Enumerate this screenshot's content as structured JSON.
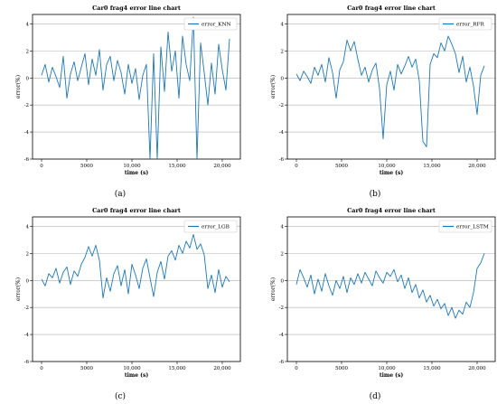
{
  "chart_data": [
    {
      "type": "line",
      "panel_label": "(a)",
      "title": "Car0 frag4 error line chart",
      "xlabel": "time (s)",
      "ylabel": "error(%)",
      "xlim": [
        -1000,
        22000
      ],
      "ylim": [
        -6,
        4.7
      ],
      "xticks": [
        0,
        5000,
        10000,
        15000,
        20000
      ],
      "xtick_labels": [
        "0",
        "5000",
        "10,000",
        "15,000",
        "20,000"
      ],
      "yticks": [
        -6,
        -4,
        -2,
        0,
        2,
        4
      ],
      "ytick_labels": [
        "-6",
        "-4",
        "-2",
        "0",
        "2",
        "4"
      ],
      "grid": "y",
      "legend_position": "top-right",
      "series": [
        {
          "name": "error_KNN",
          "color": "#1f77b4",
          "x": [
            0,
            400,
            800,
            1200,
            1600,
            2000,
            2400,
            2800,
            3200,
            3600,
            4000,
            4400,
            4800,
            5200,
            5600,
            6000,
            6400,
            6800,
            7200,
            7600,
            8000,
            8400,
            8800,
            9200,
            9600,
            10000,
            10400,
            10800,
            11200,
            11600,
            12000,
            12400,
            12800,
            13200,
            13600,
            14000,
            14400,
            14800,
            15200,
            15600,
            16000,
            16400,
            16800,
            17200,
            17600,
            18000,
            18400,
            18800,
            19200,
            19600,
            20000,
            20400,
            20800
          ],
          "y": [
            0.2,
            1.0,
            -0.3,
            0.8,
            0.1,
            -0.7,
            1.6,
            -1.5,
            0.3,
            1.2,
            -0.2,
            0.8,
            1.8,
            -0.5,
            1.4,
            0.2,
            2.1,
            -0.9,
            1.0,
            1.6,
            -0.2,
            1.3,
            0.4,
            -1.2,
            1.0,
            -0.4,
            0.7,
            -1.6,
            0.2,
            1.0,
            -6.0,
            1.8,
            -6.0,
            2.3,
            -1.0,
            3.4,
            0.5,
            2.0,
            -1.5,
            3.1,
            1.0,
            -0.2,
            4.5,
            -6.0,
            2.6,
            0.4,
            -2.0,
            1.1,
            -1.2,
            2.5,
            0.6,
            -0.9,
            2.9
          ]
        }
      ]
    },
    {
      "type": "line",
      "panel_label": "(b)",
      "title": "Car0 frag4 error line chart",
      "xlabel": "time (s)",
      "ylabel": "error(%)",
      "xlim": [
        -1000,
        22000
      ],
      "ylim": [
        -6,
        4.7
      ],
      "xticks": [
        0,
        5000,
        10000,
        15000,
        20000
      ],
      "xtick_labels": [
        "0",
        "5000",
        "10,000",
        "15,000",
        "20,000"
      ],
      "yticks": [
        -6,
        -4,
        -2,
        0,
        2,
        4
      ],
      "ytick_labels": [
        "-6",
        "-4",
        "-2",
        "0",
        "2",
        "4"
      ],
      "grid": "y",
      "legend_position": "top-right",
      "series": [
        {
          "name": "error_RFR",
          "color": "#1f77b4",
          "x": [
            0,
            400,
            800,
            1200,
            1600,
            2000,
            2400,
            2800,
            3200,
            3600,
            4000,
            4400,
            4800,
            5200,
            5600,
            6000,
            6400,
            6800,
            7200,
            7600,
            8000,
            8400,
            8800,
            9200,
            9600,
            10000,
            10400,
            10800,
            11200,
            11600,
            12000,
            12400,
            12800,
            13200,
            13600,
            14000,
            14400,
            14800,
            15200,
            15600,
            16000,
            16400,
            16800,
            17200,
            17600,
            18000,
            18400,
            18800,
            19200,
            19600,
            20000,
            20400,
            20800
          ],
          "y": [
            0.3,
            -0.2,
            0.5,
            0.1,
            -0.4,
            0.8,
            0.2,
            1.0,
            -0.3,
            1.5,
            0.4,
            -1.5,
            0.6,
            1.2,
            2.8,
            2.0,
            2.7,
            1.4,
            0.2,
            0.8,
            -0.3,
            0.6,
            1.1,
            -0.8,
            -4.5,
            -0.5,
            0.5,
            -0.9,
            1.0,
            0.3,
            0.9,
            1.6,
            0.8,
            1.4,
            -0.2,
            -4.7,
            -5.1,
            1.0,
            1.8,
            1.5,
            2.6,
            2.0,
            3.1,
            2.5,
            1.8,
            0.4,
            1.6,
            -0.3,
            0.8,
            -0.6,
            -2.7,
            0.2,
            0.9
          ]
        }
      ]
    },
    {
      "type": "line",
      "panel_label": "(c)",
      "title": "Car0 frag4 error line chart",
      "xlabel": "time (s)",
      "ylabel": "error(%)",
      "xlim": [
        -1000,
        22000
      ],
      "ylim": [
        -6,
        4.7
      ],
      "xticks": [
        0,
        5000,
        10000,
        15000,
        20000
      ],
      "xtick_labels": [
        "0",
        "5000",
        "10,000",
        "15,000",
        "20,000"
      ],
      "yticks": [
        -6,
        -4,
        -2,
        0,
        2,
        4
      ],
      "ytick_labels": [
        "-6",
        "-4",
        "-2",
        "0",
        "2",
        "4"
      ],
      "grid": "y",
      "legend_position": "top-right",
      "series": [
        {
          "name": "error_LGB",
          "color": "#1f77b4",
          "x": [
            0,
            400,
            800,
            1200,
            1600,
            2000,
            2400,
            2800,
            3200,
            3600,
            4000,
            4400,
            4800,
            5200,
            5600,
            6000,
            6400,
            6800,
            7200,
            7600,
            8000,
            8400,
            8800,
            9200,
            9600,
            10000,
            10400,
            10800,
            11200,
            11600,
            12000,
            12400,
            12800,
            13200,
            13600,
            14000,
            14400,
            14800,
            15200,
            15600,
            16000,
            16400,
            16800,
            17200,
            17600,
            18000,
            18400,
            18800,
            19200,
            19600,
            20000,
            20400,
            20800
          ],
          "y": [
            0.1,
            -0.4,
            0.5,
            0.2,
            0.9,
            -0.2,
            0.6,
            1.0,
            -0.3,
            0.7,
            0.3,
            1.2,
            1.7,
            2.5,
            1.8,
            2.6,
            1.5,
            -1.3,
            0.2,
            -0.8,
            0.5,
            1.1,
            -0.4,
            0.8,
            -1.0,
            1.2,
            0.4,
            -0.6,
            0.9,
            1.6,
            0.2,
            -1.2,
            0.6,
            1.4,
            0.1,
            1.8,
            2.2,
            1.5,
            2.6,
            2.0,
            2.9,
            2.4,
            3.4,
            2.3,
            2.7,
            1.9,
            -0.6,
            0.4,
            -0.9,
            0.8,
            -0.5,
            0.3,
            -0.1
          ]
        }
      ]
    },
    {
      "type": "line",
      "panel_label": "(d)",
      "title": "Car0 frag4 error line chart",
      "xlabel": "time (s)",
      "ylabel": "error(%)",
      "xlim": [
        -1000,
        22000
      ],
      "ylim": [
        -6,
        4.7
      ],
      "xticks": [
        0,
        5000,
        10000,
        15000,
        20000
      ],
      "xtick_labels": [
        "0",
        "5000",
        "10,000",
        "15,000",
        "20,000"
      ],
      "yticks": [
        -6,
        -4,
        -2,
        0,
        2,
        4
      ],
      "ytick_labels": [
        "-6",
        "-4",
        "-2",
        "0",
        "2",
        "4"
      ],
      "grid": "y",
      "legend_position": "top-right",
      "series": [
        {
          "name": "error_LSTM",
          "color": "#1f77b4",
          "x": [
            0,
            400,
            800,
            1200,
            1600,
            2000,
            2400,
            2800,
            3200,
            3600,
            4000,
            4400,
            4800,
            5200,
            5600,
            6000,
            6400,
            6800,
            7200,
            7600,
            8000,
            8400,
            8800,
            9200,
            9600,
            10000,
            10400,
            10800,
            11200,
            11600,
            12000,
            12400,
            12800,
            13200,
            13600,
            14000,
            14400,
            14800,
            15200,
            15600,
            16000,
            16400,
            16800,
            17200,
            17600,
            18000,
            18400,
            18800,
            19200,
            19600,
            20000,
            20400,
            20800
          ],
          "y": [
            -0.3,
            0.8,
            0.2,
            -0.5,
            0.4,
            -1.0,
            0.1,
            -0.8,
            0.5,
            -0.4,
            -1.1,
            0.0,
            -0.6,
            0.3,
            -0.9,
            0.2,
            -0.3,
            0.5,
            -0.2,
            0.6,
            0.1,
            -0.4,
            0.7,
            0.2,
            -0.2,
            0.6,
            0.3,
            0.8,
            -0.1,
            0.4,
            -0.6,
            0.2,
            -0.9,
            -0.3,
            -1.3,
            -0.7,
            -1.6,
            -1.1,
            -1.9,
            -1.4,
            -2.1,
            -1.7,
            -2.6,
            -2.0,
            -2.8,
            -2.2,
            -2.5,
            -1.6,
            -2.0,
            -0.9,
            0.9,
            1.3,
            2.0
          ]
        }
      ]
    }
  ]
}
